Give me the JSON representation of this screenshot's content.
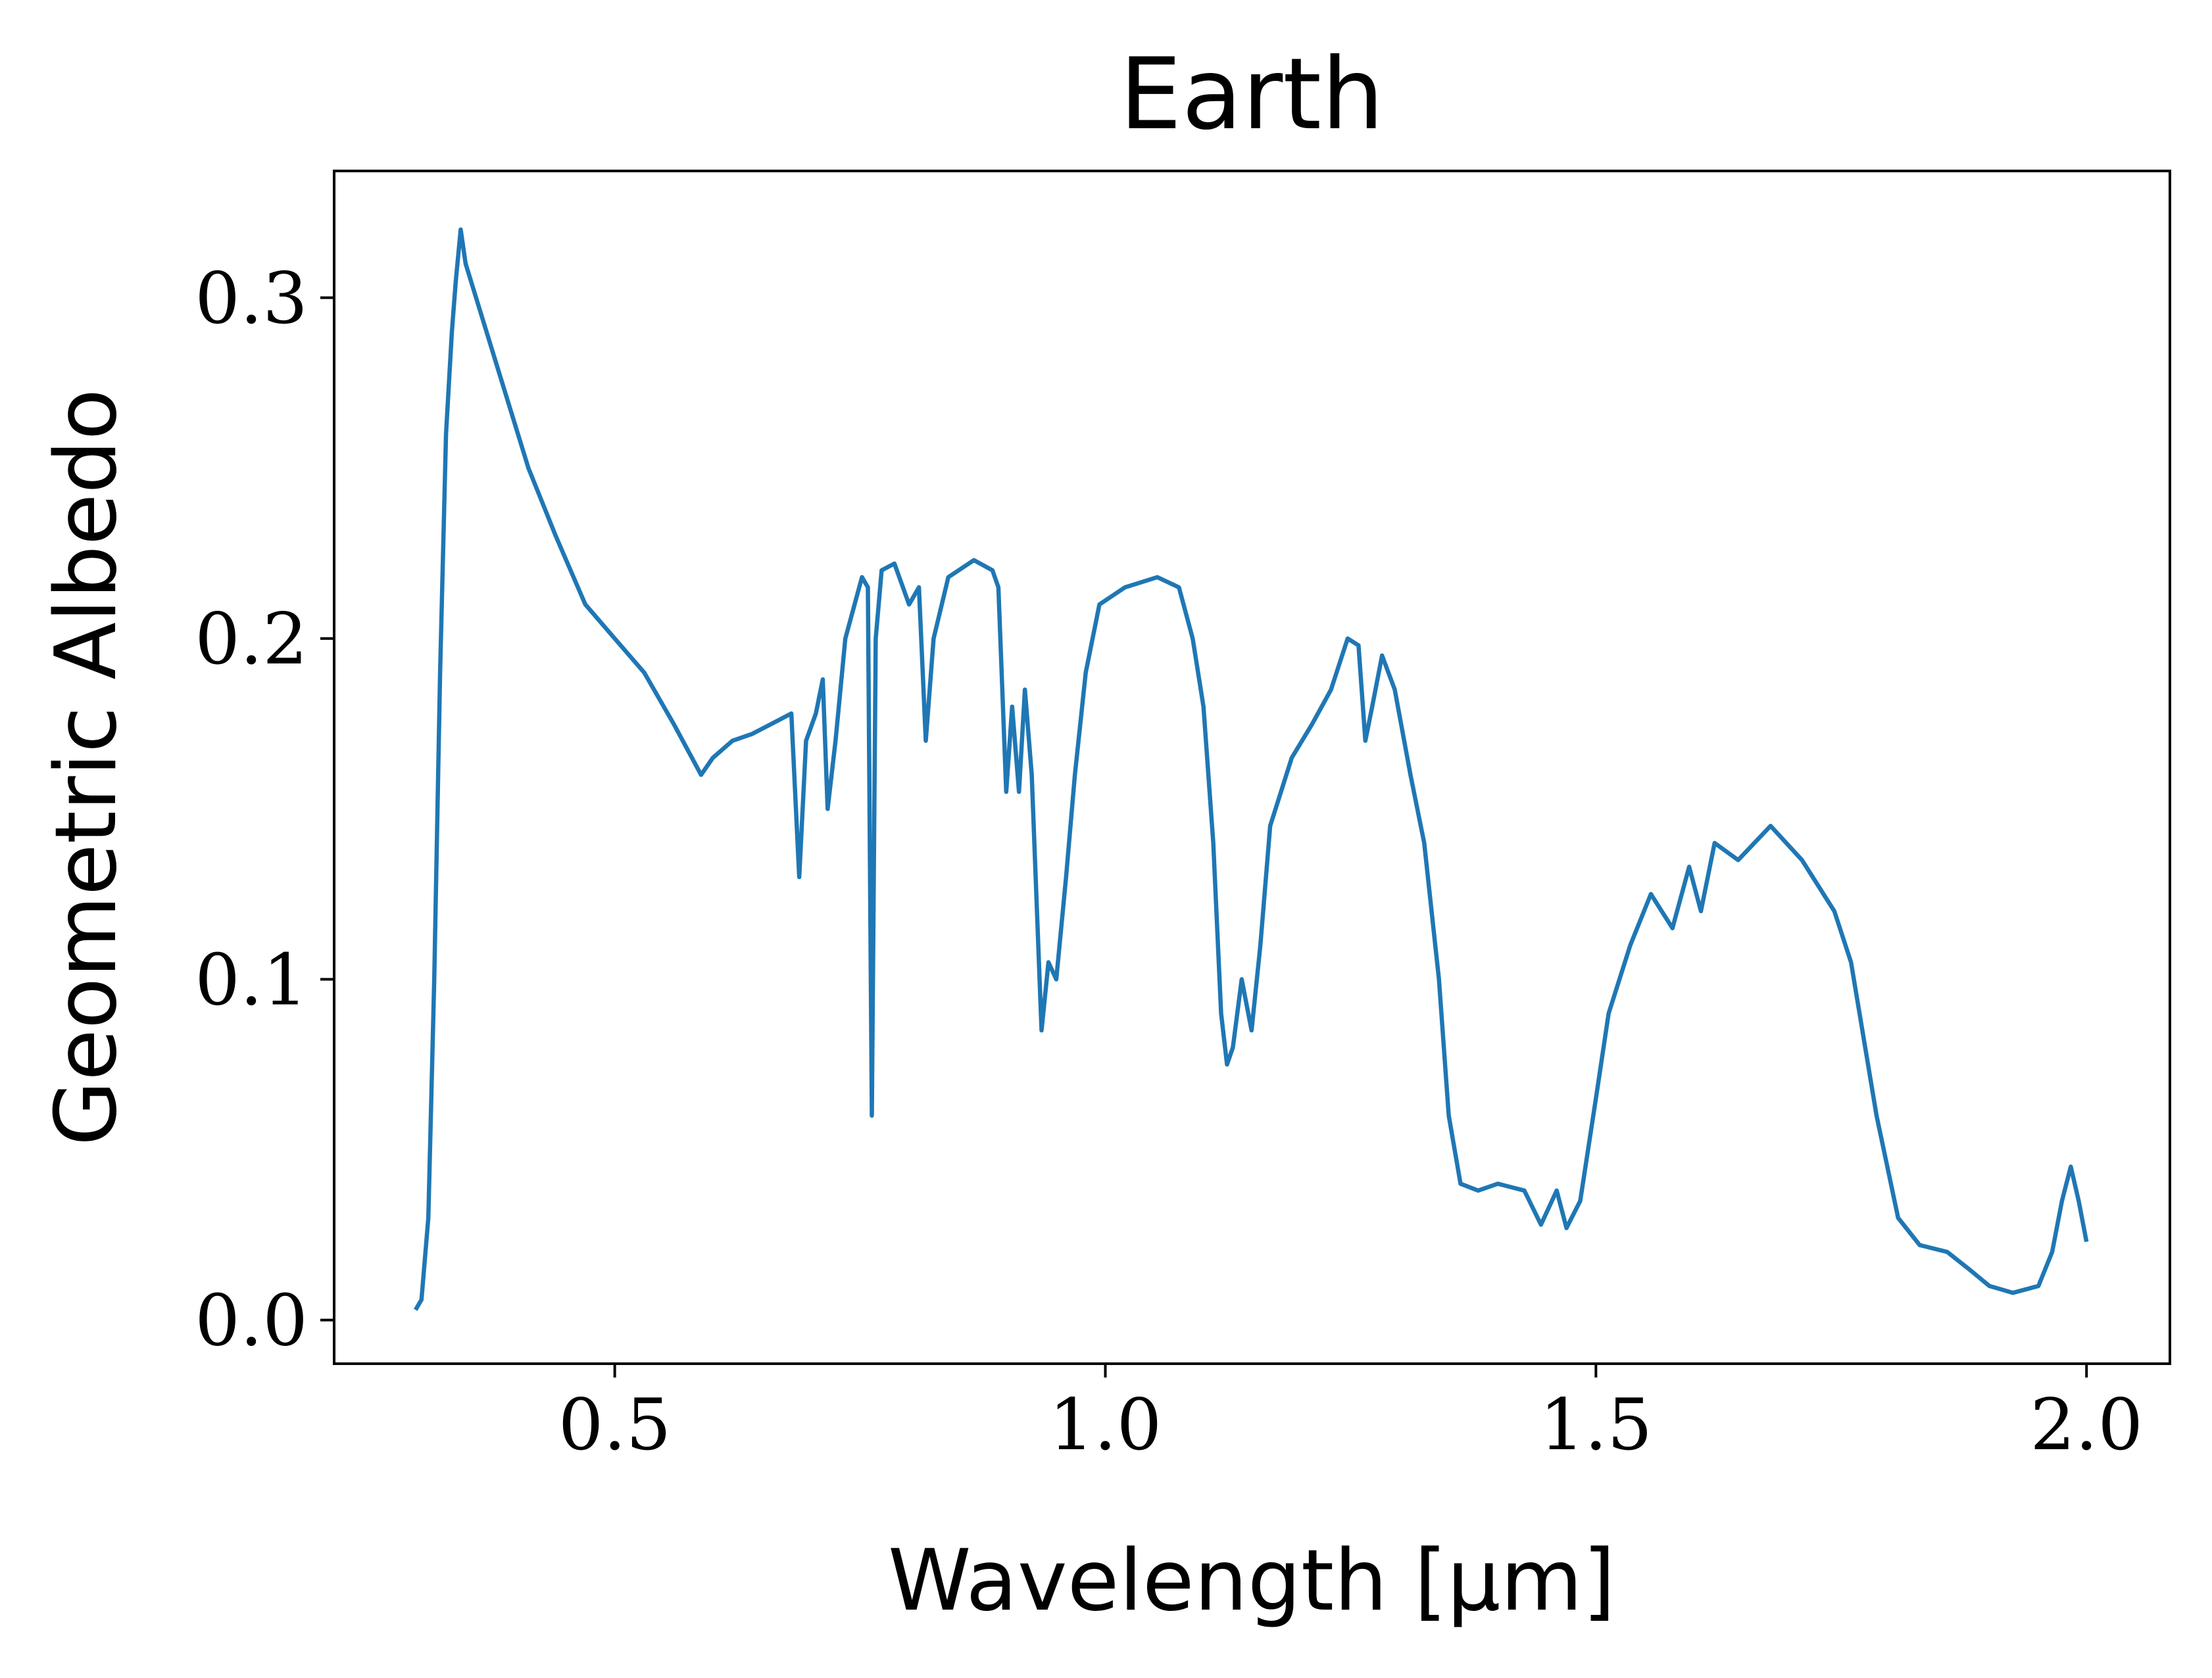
{
  "chart_data": {
    "type": "line",
    "title": "Earth",
    "xlabel": "Wavelength [μm]",
    "ylabel": "Geometric Albedo",
    "x": [
      0.297,
      0.303,
      0.31,
      0.316,
      0.322,
      0.328,
      0.334,
      0.338,
      0.343,
      0.348,
      0.38,
      0.412,
      0.44,
      0.47,
      0.5,
      0.53,
      0.56,
      0.588,
      0.6,
      0.62,
      0.64,
      0.66,
      0.68,
      0.688,
      0.695,
      0.705,
      0.712,
      0.717,
      0.725,
      0.735,
      0.752,
      0.758,
      0.762,
      0.766,
      0.772,
      0.785,
      0.8,
      0.81,
      0.817,
      0.825,
      0.84,
      0.866,
      0.885,
      0.891,
      0.899,
      0.905,
      0.912,
      0.918,
      0.925,
      0.935,
      0.942,
      0.95,
      0.96,
      0.969,
      0.98,
      0.994,
      1.02,
      1.053,
      1.075,
      1.089,
      1.1,
      1.11,
      1.118,
      1.124,
      1.13,
      1.139,
      1.149,
      1.158,
      1.168,
      1.19,
      1.211,
      1.23,
      1.247,
      1.258,
      1.265,
      1.272,
      1.282,
      1.295,
      1.311,
      1.325,
      1.34,
      1.35,
      1.362,
      1.38,
      1.4,
      1.427,
      1.444,
      1.46,
      1.47,
      1.484,
      1.5,
      1.513,
      1.535,
      1.556,
      1.578,
      1.595,
      1.607,
      1.621,
      1.645,
      1.678,
      1.71,
      1.743,
      1.76,
      1.786,
      1.808,
      1.83,
      1.858,
      1.88,
      1.901,
      1.925,
      1.951,
      1.965,
      1.975,
      1.984,
      1.992,
      2.0
    ],
    "series": [
      {
        "name": "Earth",
        "color": "#1f77b4",
        "values": [
          0.003,
          0.006,
          0.03,
          0.1,
          0.19,
          0.26,
          0.29,
          0.305,
          0.32,
          0.31,
          0.28,
          0.25,
          0.23,
          0.21,
          0.2,
          0.19,
          0.175,
          0.16,
          0.165,
          0.17,
          0.172,
          0.175,
          0.178,
          0.13,
          0.17,
          0.178,
          0.188,
          0.15,
          0.17,
          0.2,
          0.218,
          0.215,
          0.06,
          0.2,
          0.22,
          0.222,
          0.21,
          0.215,
          0.17,
          0.2,
          0.218,
          0.223,
          0.22,
          0.215,
          0.155,
          0.18,
          0.155,
          0.185,
          0.16,
          0.085,
          0.105,
          0.1,
          0.13,
          0.16,
          0.19,
          0.21,
          0.215,
          0.218,
          0.215,
          0.2,
          0.18,
          0.14,
          0.09,
          0.075,
          0.08,
          0.1,
          0.085,
          0.11,
          0.145,
          0.165,
          0.175,
          0.185,
          0.2,
          0.198,
          0.17,
          0.18,
          0.195,
          0.185,
          0.16,
          0.14,
          0.1,
          0.06,
          0.04,
          0.038,
          0.04,
          0.038,
          0.028,
          0.038,
          0.027,
          0.035,
          0.065,
          0.09,
          0.11,
          0.125,
          0.115,
          0.133,
          0.12,
          0.14,
          0.135,
          0.145,
          0.135,
          0.12,
          0.105,
          0.06,
          0.03,
          0.022,
          0.02,
          0.015,
          0.01,
          0.008,
          0.01,
          0.02,
          0.035,
          0.045,
          0.035,
          0.023
        ]
      }
    ],
    "xlim": [
      0.214,
      2.085
    ],
    "ylim": [
      -0.0128,
      0.3372
    ],
    "xticks": [
      0.5,
      {
        "value": 1.0,
        "label": "1.0"
      },
      1.5,
      {
        "value": 2.0,
        "label": "2.0"
      }
    ],
    "yticks": [
      {
        "value": 0,
        "label": "0.0"
      },
      0.1,
      0.2,
      0.3
    ]
  }
}
